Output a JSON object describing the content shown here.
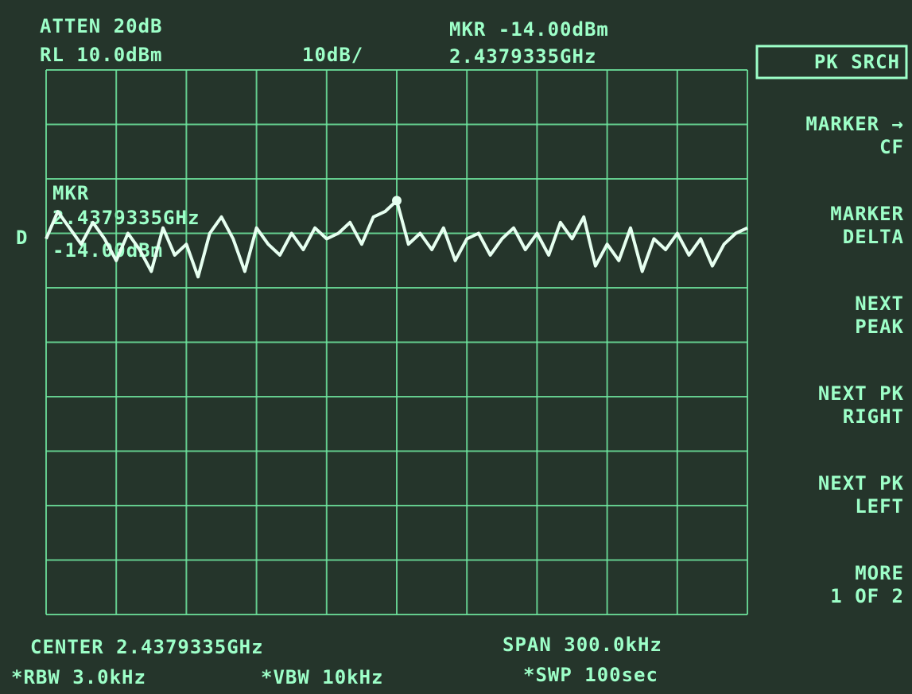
{
  "chart_data": {
    "type": "line",
    "header": {
      "atten": "ATTEN 20dB",
      "ref_level": "RL 10.0dBm",
      "scale": "10dB/",
      "marker_level": "MKR -14.00dBm",
      "marker_freq": "2.4379335GHz"
    },
    "marker_label": {
      "title": "MKR",
      "freq": "2.4379335GHz",
      "level": "-14.00dBm",
      "mode": "D"
    },
    "footer": {
      "center": "CENTER 2.4379335GHz",
      "span": "SPAN 300.0kHz",
      "rbw": "*RBW 3.0kHz",
      "vbw": "*VBW 10kHz",
      "sweep": "*SWP 100sec"
    },
    "menu_title": "PK SRCH",
    "softkeys": [
      [
        "MARKER →",
        "CF"
      ],
      [
        "MARKER",
        "DELTA"
      ],
      [
        "NEXT",
        "PEAK"
      ],
      [
        "NEXT PK",
        "RIGHT"
      ],
      [
        "NEXT PK",
        "LEFT"
      ],
      [
        "MORE",
        "1 OF 2"
      ]
    ],
    "values": [
      -21,
      -16,
      -19,
      -22,
      -18,
      -21,
      -25,
      -20,
      -23,
      -27,
      -19,
      -24,
      -22,
      -28,
      -20,
      -17,
      -21,
      -27,
      -19,
      -22,
      -24,
      -20,
      -23,
      -19,
      -21,
      -20,
      -18,
      -22,
      -17,
      -16,
      -14,
      -22,
      -20,
      -23,
      -19,
      -25,
      -21,
      -20,
      -24,
      -21,
      -19,
      -23,
      -20,
      -24,
      -18,
      -21,
      -17,
      -26,
      -22,
      -25,
      -19,
      -27,
      -21,
      -23,
      -20,
      -24,
      -21,
      -26,
      -22,
      -20,
      -19
    ],
    "color": "#e6fff0",
    "ylim": [
      -90,
      10
    ]
  }
}
